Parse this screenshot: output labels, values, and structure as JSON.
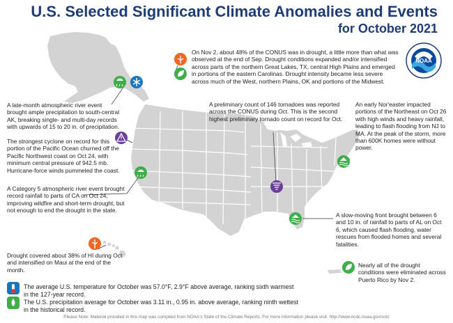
{
  "header": {
    "title": "U.S. Selected Significant Climate Anomalies and Events",
    "subtitle": "for October 2021"
  },
  "logo": {
    "name": "noaa-logo",
    "text": "NOAA"
  },
  "colors": {
    "title": "#1d3c78",
    "map_land": "#d3d3d3",
    "state_lines": "#ffffff",
    "drought_icon": "#3fae49",
    "warm_icon": "#f26522",
    "tornado_icon": "#6b3f98",
    "snow_icon": "#1b75bc",
    "leader_line": "#333333"
  },
  "annotations": {
    "drought_conus": "On Nov 2, about 48% of the CONUS was in drought, a little more than what was observed at the end of Sep. Drought conditions expanded and/or intensified across parts of the northern Great Lakes, TX, central High Plains and emerged in portions of the eastern Carolinas. Drought intensity became less severe across much of the West, northern Plains, OK and portions of the Midwest.",
    "alaska": "A late-month atmospheric river event brought ample precipitation to south-central AK, breaking single- and multi-day records with upwards of 15 to 20 in. of precipitation.",
    "pacific_cyclone": "The strongest cyclone on record for this portion of the Pacific Ocean churned off the Pacific Northwest coast on Oct 24, with minimum central pressure of 942.5 mb. Hurricane-force winds pummeled the coast.",
    "california": "A Category 5 atmospheric river event brought record rainfall to parts of CA on Oct 24, improving wildfire and short-term drought, but not enough to end the drought in the state.",
    "hawaii": "Drought covered about 38% of HI during Oct and intensified on Maui at the end of the month.",
    "tornadoes": "A preliminary count of 146 tornadoes was reported across the CONUS during Oct. This is the second highest preliminary tornado count on record for Oct.",
    "noreaster": "An early Nor'easter impacted portions of the Northeast on Oct 26 with high winds and heavy rainfall, leading to flash flooding from NJ to MA. At the peak of the storm, more than 600K homes were without power.",
    "alabama": "A slow-moving front brought between 6 and 10 in. of rainfall to parts of AL on Oct 6, which caused flash flooding, water rescues from flooded homes and several fatalities.",
    "puerto_rico": "Nearly all of the drought conditions were eliminated across Puerto Rico by Nov 2."
  },
  "summary": {
    "temperature": "The average U.S. temperature for October was 57.0°F, 2.9°F above average, ranking sixth warmest in the 127-year record.",
    "precipitation": "The U.S. precipitation average for October was 3.11 in., 0.95 in. above average, ranking ninth wettest in the historical record."
  },
  "footnote": "Please Note: Material provided in this map was compiled from NOAA's State of the Climate Reports. For more information please visit: http://www.ncdc.noaa.gov/sotc",
  "icons": [
    "rain-icon",
    "snowflake-icon",
    "drought-icon",
    "warning-icon",
    "rain-icon",
    "warm-icon",
    "tornado-icon",
    "flood-icon",
    "flood-icon",
    "drought-icon",
    "thermometer-icon",
    "precipitation-icon"
  ]
}
